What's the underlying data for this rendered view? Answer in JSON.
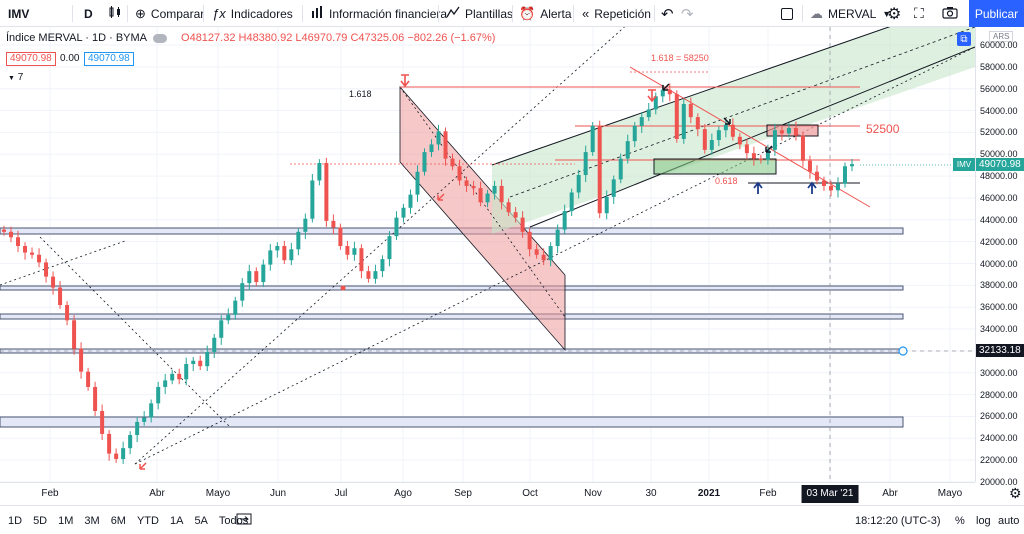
{
  "toolbar": {
    "symbol": "IMV",
    "interval": "D",
    "compare_label": "Comparar",
    "indicators_label": "Indicadores",
    "financials_label": "Información financiera",
    "templates_label": "Plantillas",
    "alert_label": "Alerta",
    "replay_label": "Repetición",
    "layout_name": "MERVAL",
    "publish_label": "Publicar"
  },
  "legend": {
    "title": "Índice MERVAL · 1D · BYMA",
    "ohlc": "O48127.32  H48380.92  L46970.79  C47325.06  −802.26 (−1.67%)",
    "bid": "49070.98",
    "spread": "0.00",
    "ask": "49070.98",
    "indicators_count": "7"
  },
  "price_axis": {
    "currency": "ARS",
    "labels": [
      "60000.00",
      "58000.00",
      "56000.00",
      "54000.00",
      "52000.00",
      "50000.00",
      "48000.00",
      "46000.00",
      "44000.00",
      "42000.00",
      "40000.00",
      "38000.00",
      "36000.00",
      "34000.00",
      "32000.00",
      "30000.00",
      "28000.00",
      "26000.00",
      "24000.00",
      "22000.00",
      "20000.00"
    ],
    "last_tag_name": "IMV",
    "last_price": "49070.98",
    "crosshair_price": "32133.18"
  },
  "time_axis": {
    "labels": [
      "Feb",
      "Abr",
      "Mayo",
      "Jun",
      "Jul",
      "Ago",
      "Sep",
      "Oct",
      "Nov",
      "30",
      "2021",
      "Feb",
      "Mar",
      "Abr",
      "Mayo"
    ],
    "crosshair_date": "03 Mar '21"
  },
  "annotations": {
    "fib_top_left": "1.618",
    "fib_top_right": "1.618 = 58250",
    "fib_618": "0.618",
    "level_label": "52500"
  },
  "bottom_bar": {
    "ranges": [
      "1D",
      "5D",
      "1M",
      "3M",
      "6M",
      "YTD",
      "1A",
      "5A",
      "Todos"
    ],
    "clock": "18:12:20 (UTC-3)",
    "percent_label": "%",
    "log_label": "log",
    "auto_label": "auto"
  },
  "chart_data": {
    "type": "candlestick",
    "title": "Índice MERVAL · 1D · BYMA",
    "ylim": [
      20000,
      60000
    ],
    "closes": [
      42900,
      42400,
      41600,
      41000,
      40800,
      40100,
      38800,
      37800,
      36200,
      34800,
      32200,
      30100,
      28700,
      26500,
      24400,
      22600,
      22100,
      23100,
      24300,
      25500,
      25900,
      27200,
      28700,
      29300,
      29900,
      29400,
      30800,
      31100,
      30600,
      31900,
      33200,
      34800,
      35300,
      36600,
      38200,
      39300,
      38300,
      39900,
      41200,
      41600,
      40300,
      41300,
      42900,
      44100,
      47600,
      49200,
      43900,
      43300,
      41600,
      40800,
      41400,
      39300,
      38600,
      39300,
      40400,
      42500,
      44200,
      45100,
      46300,
      48400,
      50200,
      50900,
      52100,
      49600,
      48900,
      47600,
      47100,
      46900,
      45600,
      46400,
      47100,
      45600,
      44700,
      44200,
      42900,
      41300,
      40800,
      40300,
      41600,
      43100,
      44800,
      46500,
      48100,
      50200,
      52600,
      44600,
      46100,
      47700,
      49600,
      51200,
      52600,
      53400,
      54100,
      55300,
      55900,
      55500,
      51400,
      54600,
      53400,
      52300,
      50400,
      51300,
      52200,
      52700,
      51600,
      50900,
      50100,
      49600,
      49500,
      50400,
      52200,
      51900,
      52400,
      51700,
      49400,
      48400,
      47600,
      47100,
      46700,
      47300,
      48900,
      49100
    ]
  },
  "colors": {
    "up": "#26a69a",
    "down": "#ef5350",
    "accent": "#2962ff",
    "channel_fill": "#c8e6c9",
    "down_channel_fill": "#ef9a9a",
    "zone": "#c5cae9"
  }
}
